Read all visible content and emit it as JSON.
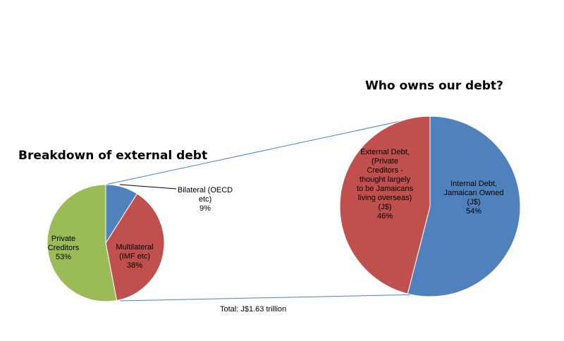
{
  "chart_data": [
    {
      "type": "pie",
      "title": "Breakdown of external debt",
      "slices": [
        {
          "name": "Bilateral (OECD etc)",
          "label_lines": [
            "Bilateral (OECD",
            "etc)"
          ],
          "value": 9,
          "display": "9%",
          "color": "#4F81BD"
        },
        {
          "name": "Multilateral (IMF etc)",
          "label_lines": [
            "Multilateral",
            "(IMF etc)"
          ],
          "value": 38,
          "display": "38%",
          "color": "#C0504D"
        },
        {
          "name": "Private Creditors",
          "label_lines": [
            "Private",
            "Creditors"
          ],
          "value": 53,
          "display": "53%",
          "color": "#9BBB59"
        }
      ]
    },
    {
      "type": "pie",
      "title": "Who owns our debt?",
      "slices": [
        {
          "name": "Internal Debt, Jamaican Owned (J$)",
          "label_lines": [
            "Internal Debt,",
            "Jamaican Owned",
            "(J$)"
          ],
          "value": 54,
          "display": "54%",
          "color": "#4F81BD"
        },
        {
          "name": "External Debt, (Private Creditors - thought largely to be Jamaicans living overseas) (J$)",
          "label_lines": [
            "External Debt,",
            "(Private",
            "Creditors -",
            "thought largely",
            "to be Jamaicans",
            "living overseas)",
            "(J$)"
          ],
          "value": 46,
          "display": "46%",
          "color": "#C0504D"
        }
      ]
    }
  ],
  "total_label": "Total:  J$1.63 trillion",
  "colors": {
    "connector": "#4F81BD",
    "leader": "#000000"
  }
}
